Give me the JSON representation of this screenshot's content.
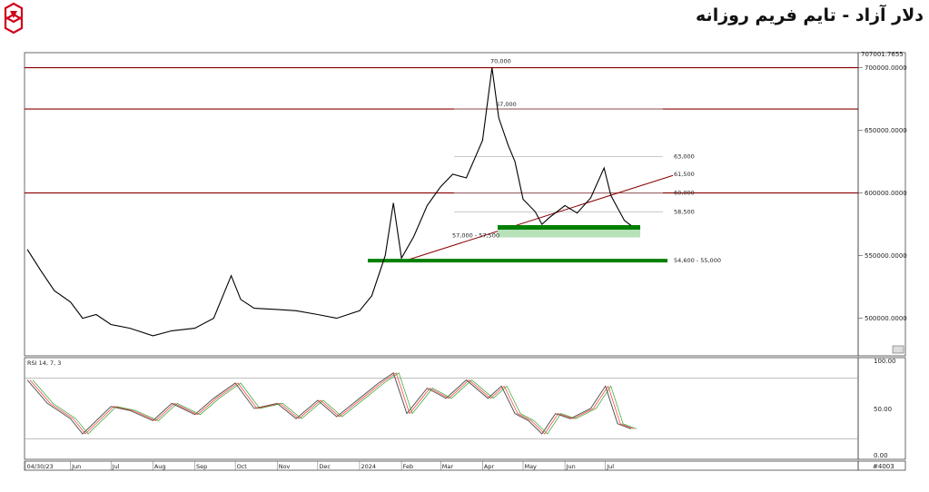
{
  "header": {
    "title": "دلار آزاد - تایم فریم روزانه"
  },
  "colors": {
    "resistance": "#8b0000",
    "support": "#008000",
    "support_zone": "#b7e1b7",
    "price": "#000000",
    "rsi": "#555555",
    "rsi_avg1": "#ff3030",
    "rsi_avg2": "#30a030"
  },
  "chart_data": {
    "type": "line",
    "price_panel": {
      "ylim": [
        470000,
        712000
      ],
      "y_ticks": [
        {
          "value": 700000,
          "label": "700000.0000"
        },
        {
          "value": 650000,
          "label": "650000.0000"
        },
        {
          "value": 600000,
          "label": "600000.0000"
        },
        {
          "value": 550000,
          "label": "550000.0000"
        },
        {
          "value": 500000,
          "label": "500000.0000"
        }
      ],
      "top_clip_label": "707001.7655",
      "series": [
        {
          "x": [
            "2023-04-30",
            "2023-05-10",
            "2023-05-20",
            "2023-06-01",
            "2023-06-10",
            "2023-06-20",
            "2023-07-01",
            "2023-07-15",
            "2023-08-01",
            "2023-08-15",
            "2023-09-01",
            "2023-09-15",
            "2023-09-28",
            "2023-10-05",
            "2023-10-15",
            "2023-11-01",
            "2023-11-15",
            "2023-12-01",
            "2023-12-15",
            "2024-01-01",
            "2024-01-10",
            "2024-01-20",
            "2024-01-26",
            "2024-02-01",
            "2024-02-10",
            "2024-02-20",
            "2024-03-01",
            "2024-03-10",
            "2024-03-20",
            "2024-04-01",
            "2024-04-08",
            "2024-04-13",
            "2024-04-20",
            "2024-04-25",
            "2024-05-01",
            "2024-05-10",
            "2024-05-15",
            "2024-05-20",
            "2024-06-01",
            "2024-06-10",
            "2024-06-20",
            "2024-06-30",
            "2024-07-05",
            "2024-07-10",
            "2024-07-15",
            "2024-07-20"
          ],
          "y": [
            555000,
            538000,
            522000,
            513000,
            500000,
            503000,
            495000,
            492000,
            486000,
            490000,
            492000,
            500000,
            534000,
            515000,
            508000,
            507000,
            506000,
            503000,
            500000,
            506000,
            518000,
            550000,
            592000,
            548000,
            565000,
            590000,
            605000,
            615000,
            612000,
            642000,
            700000,
            660000,
            638000,
            625000,
            595000,
            585000,
            575000,
            580000,
            590000,
            584000,
            596000,
            620000,
            598000,
            588000,
            578000,
            574000
          ]
        }
      ],
      "annotations": [
        {
          "label": "70,000",
          "value": 700000
        },
        {
          "label": "67,000",
          "value": 667000
        },
        {
          "label": "63,000",
          "value": 629000
        },
        {
          "label": "61,500",
          "value": 615000
        },
        {
          "label": "60,000",
          "value": 600000
        },
        {
          "label": "58,500",
          "value": 585000
        },
        {
          "label": "57,000 - 57,500",
          "value": 572500
        },
        {
          "label": "54,600 - 55,000",
          "value": 546000
        }
      ],
      "resistance_levels": [
        700000,
        667000,
        600000
      ],
      "trendline": {
        "from": {
          "x": "2024-02-01",
          "y": 545000
        },
        "to": {
          "x": "2024-08-20",
          "y": 614000
        }
      }
    },
    "rsi_panel": {
      "label": "RSI 14, 7, 3",
      "ylim": [
        0,
        100
      ],
      "y_ticks": [
        {
          "value": 100,
          "label": "100.00"
        },
        {
          "value": 50,
          "label": "50.00"
        },
        {
          "value": 0,
          "label": "0.00"
        }
      ],
      "levels": [
        80,
        20
      ],
      "series": [
        {
          "x": [
            "2023-04-30",
            "2023-05-15",
            "2023-06-01",
            "2023-06-10",
            "2023-07-01",
            "2023-07-15",
            "2023-08-01",
            "2023-08-15",
            "2023-09-01",
            "2023-09-15",
            "2023-10-01",
            "2023-10-15",
            "2023-11-01",
            "2023-11-15",
            "2023-12-01",
            "2023-12-15",
            "2024-01-01",
            "2024-01-15",
            "2024-01-26",
            "2024-02-05",
            "2024-02-20",
            "2024-03-05",
            "2024-03-20",
            "2024-04-05",
            "2024-04-15",
            "2024-04-25",
            "2024-05-05",
            "2024-05-15",
            "2024-05-25",
            "2024-06-05",
            "2024-06-20",
            "2024-07-01",
            "2024-07-10",
            "2024-07-20"
          ],
          "y": [
            78,
            55,
            40,
            25,
            52,
            48,
            38,
            55,
            44,
            60,
            75,
            50,
            55,
            40,
            58,
            42,
            60,
            75,
            85,
            45,
            70,
            60,
            78,
            60,
            72,
            45,
            38,
            25,
            45,
            40,
            50,
            72,
            35,
            30
          ]
        }
      ]
    },
    "x_axis": {
      "labels": [
        "04/30/23",
        "Jun",
        "Jul",
        "Aug",
        "Sep",
        "Oct",
        "Nov",
        "Dec",
        "2024",
        "Feb",
        "Mar",
        "Apr",
        "May",
        "Jun",
        "Jul"
      ]
    },
    "status": "#4003"
  }
}
